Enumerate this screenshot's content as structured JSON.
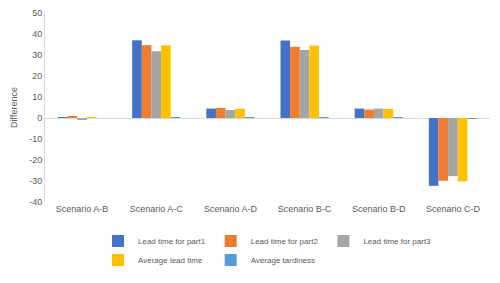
{
  "chart_data": {
    "type": "bar",
    "y_label": "Difference",
    "categories": [
      "Scenario A-B",
      "Scenario A-C",
      "Scenario A-D",
      "Scenario B-C",
      "Scenario B-D",
      "Scenario C-D"
    ],
    "series": [
      {
        "name": "Lead time for part1",
        "color": "#4472c4",
        "values": [
          0.1,
          37,
          4.5,
          36.9,
          4.5,
          -32.3
        ]
      },
      {
        "name": "Lead time for part2",
        "color": "#ed7d31",
        "values": [
          0.8,
          34.7,
          4.8,
          33.9,
          4.0,
          -29.9
        ]
      },
      {
        "name": "Lead time for part3",
        "color": "#a5a5a5",
        "values": [
          -0.6,
          31.8,
          3.8,
          32.4,
          4.5,
          -27.7
        ]
      },
      {
        "name": "Average lead time",
        "color": "#ffc000",
        "values": [
          0.1,
          34.6,
          4.4,
          34.5,
          4.3,
          -30.2
        ]
      },
      {
        "name": "Average tardiness",
        "color": "#5b9bd5",
        "values": [
          0,
          0.3,
          0.1,
          0.3,
          0.1,
          -0.3
        ]
      }
    ],
    "ylim": [
      -40,
      50
    ],
    "yticks": [
      -40,
      -30,
      -20,
      -10,
      0,
      10,
      20,
      30,
      40,
      50
    ],
    "grid": false,
    "legend": "bottom"
  }
}
